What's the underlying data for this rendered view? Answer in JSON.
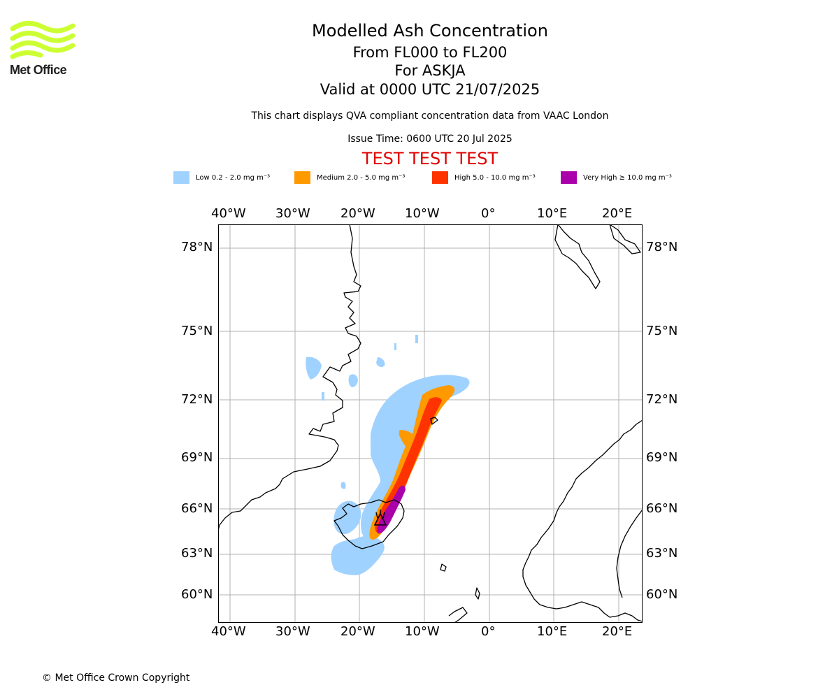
{
  "logo": {
    "text": "Met Office",
    "colors": {
      "waves": "#ccff33",
      "text": "#222222"
    }
  },
  "titles": {
    "main": "Modelled Ash Concentration",
    "levels": "From FL000 to FL200",
    "volcano": "For ASKJA",
    "valid": "Valid at 0000 UTC 21/07/2025",
    "subtitle": "This chart displays QVA compliant concentration data from VAAC London",
    "issue": "Issue Time: 0600 UTC 20 Jul 2025",
    "test_banner": "TEST TEST TEST"
  },
  "legend": [
    {
      "label": "Low 0.2 - 2.0 mg m⁻³",
      "color": "#a0d2ff"
    },
    {
      "label": "Medium 2.0 - 5.0 mg m⁻³",
      "color": "#ff9900"
    },
    {
      "label": "High 5.0 - 10.0 mg m⁻³",
      "color": "#ff3300"
    },
    {
      "label": "Very High ≥ 10.0 mg m⁻³",
      "color": "#aa00aa"
    }
  ],
  "map": {
    "longitude_labels": [
      "40°W",
      "30°W",
      "20°W",
      "10°W",
      "0°",
      "10°E",
      "20°E"
    ],
    "latitude_labels": [
      "78°N",
      "75°N",
      "72°N",
      "69°N",
      "66°N",
      "63°N",
      "60°N"
    ],
    "volcano_marker": "ASKJA",
    "colors": {
      "grid": "#b0b0b0",
      "coast": "#000000",
      "frame": "#000000"
    }
  },
  "copyright": "© Met Office Crown Copyright"
}
